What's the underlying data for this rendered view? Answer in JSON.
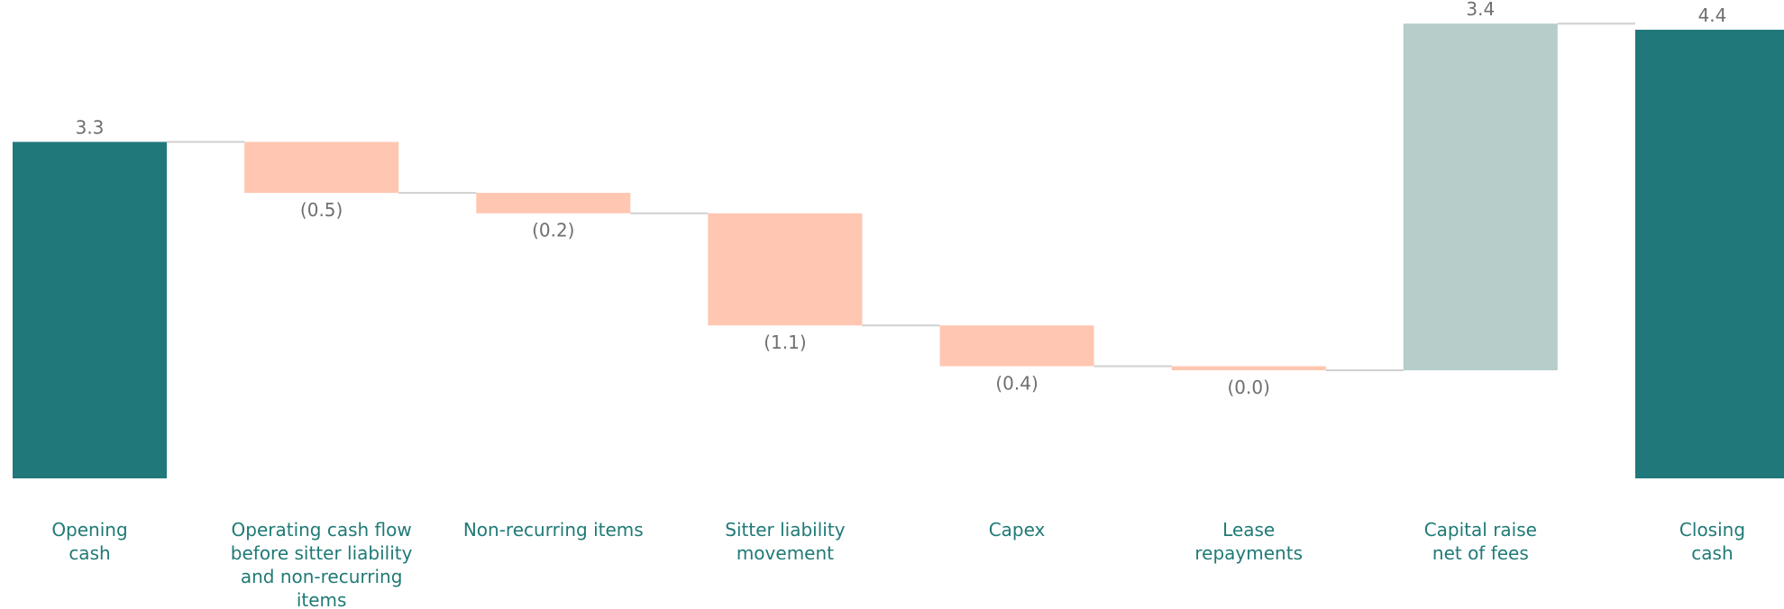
{
  "chart_data": {
    "type": "waterfall",
    "title": "",
    "xlabel": "",
    "ylabel": "",
    "ylim": [
      0,
      4.4
    ],
    "grid": false,
    "legend": "none",
    "categories": [
      [
        "Opening",
        "cash"
      ],
      [
        "Operating cash flow",
        "before sitter liability",
        "and non-recurring",
        "items"
      ],
      [
        "Non-recurring items"
      ],
      [
        "Sitter liability",
        "movement"
      ],
      [
        "Capex"
      ],
      [
        "Lease",
        "repayments"
      ],
      [
        "Capital raise",
        "net of fees"
      ],
      [
        "Closing",
        "cash"
      ]
    ],
    "values": [
      3.3,
      -0.5,
      -0.2,
      -1.1,
      -0.4,
      -0.04,
      3.4,
      4.4
    ],
    "labels": [
      "3.3",
      "(0.5)",
      "(0.2)",
      "(1.1)",
      "(0.4)",
      "(0.0)",
      "3.4",
      "4.4"
    ],
    "kinds": [
      "total",
      "decrease",
      "decrease",
      "decrease",
      "decrease",
      "decrease",
      "increase",
      "total"
    ],
    "colors": {
      "total": "#21787a",
      "decrease": "#ffc6b1",
      "increase": "#b6cdc9",
      "connector": "#d0d0d0",
      "value_text": "#6f6f6f",
      "category_text": "#1f7a76"
    }
  }
}
